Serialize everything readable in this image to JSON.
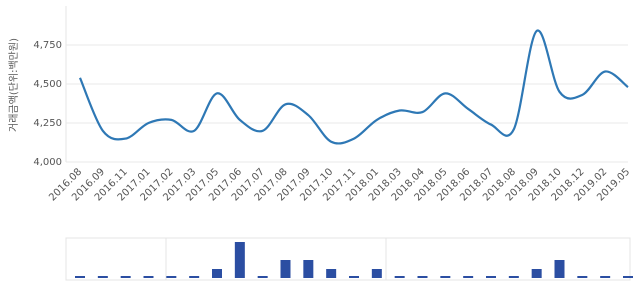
{
  "chart_data": [
    {
      "type": "line",
      "y_label": "거래금액(단위:백만원)",
      "categories": [
        "2016.08",
        "2016.09",
        "2016.11",
        "2017.01",
        "2017.02",
        "2017.03",
        "2017.05",
        "2017.06",
        "2017.07",
        "2017.08",
        "2017.09",
        "2017.10",
        "2017.11",
        "2018.01",
        "2018.03",
        "2018.04",
        "2018.05",
        "2018.06",
        "2018.07",
        "2018.08",
        "2018.09",
        "2018.10",
        "2018.12",
        "2019.02",
        "2019.05"
      ],
      "series": [
        {
          "color": "#2e78b5",
          "values": [
            4540,
            4200,
            4150,
            4250,
            4270,
            4200,
            4440,
            4270,
            4200,
            4370,
            4300,
            4130,
            4150,
            4270,
            4330,
            4320,
            4440,
            4340,
            4240,
            4210,
            4840,
            4450,
            4430,
            4580,
            4480
          ]
        }
      ],
      "ylim": [
        4000,
        5000
      ],
      "yticks": [
        {
          "value": 4000,
          "label": "4,000"
        },
        {
          "value": 4250,
          "label": "4,250"
        },
        {
          "value": 4500,
          "label": "4,500"
        },
        {
          "value": 4750,
          "label": "4,750"
        }
      ],
      "grid": true
    },
    {
      "type": "bar",
      "color": "#2b4ea2",
      "values": [
        0,
        0,
        0,
        0,
        0,
        0,
        1,
        4,
        0,
        2,
        2,
        1,
        0,
        1,
        0,
        0,
        0,
        0,
        0,
        0,
        1,
        2,
        0,
        0,
        0
      ],
      "ylim": [
        0,
        4
      ]
    }
  ]
}
